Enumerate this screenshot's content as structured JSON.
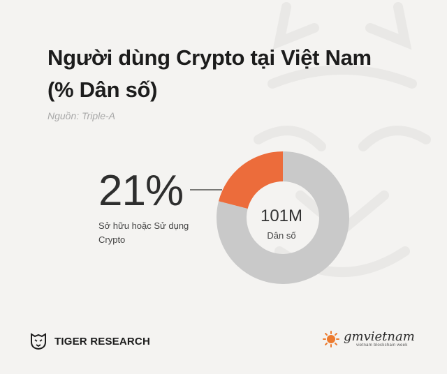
{
  "title_line1": "Người dùng Crypto tại Việt Nam",
  "title_line2": "(% Dân số)",
  "source": "Nguồn: Triple-A",
  "colors": {
    "highlight": "#ec6c3b",
    "remainder": "#c9c9c9",
    "background": "#f4f3f1"
  },
  "chart_data": {
    "type": "pie",
    "donut": true,
    "slices": [
      {
        "label": "Sở hữu hoặc Sử dụng Crypto",
        "value": 21
      },
      {
        "label": "",
        "value": 79
      }
    ],
    "highlight_value": "21%",
    "highlight_label": "Sở hữu hoặc Sử dụng Crypto",
    "center_value": "101M",
    "center_label": "Dân số"
  },
  "footer": {
    "left_brand": "TIGER RESEARCH",
    "left_logo_icon": "tiger-head-icon",
    "right_brand": "gmvietnam",
    "right_subtitle": "vietnam blockchain week",
    "right_logo_icon": "gm-sun-icon"
  }
}
